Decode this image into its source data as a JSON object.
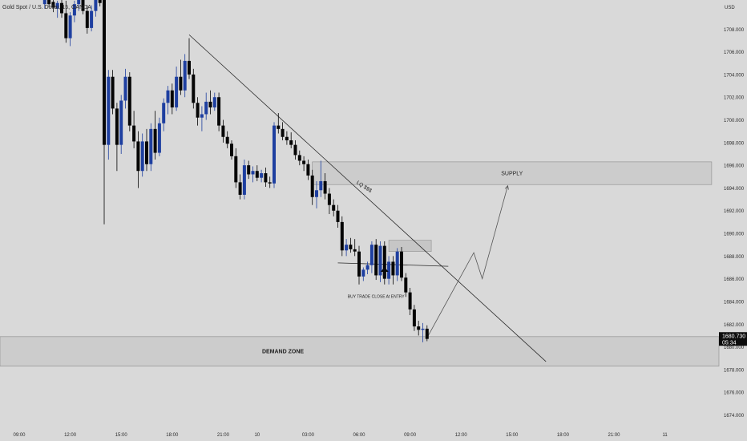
{
  "header": {
    "symbol_title": "Gold Spot / U.S. Dollar, 15, OANDA",
    "currency": "USD"
  },
  "price_tag": {
    "price": "1680.730",
    "countdown": "05:34",
    "value": 1680.73
  },
  "colors": {
    "background": "#d9d9d9",
    "bull": "#1e3fa0",
    "bear": "#050505",
    "zone": "#cccccc",
    "zone_border": "#8a8a8a",
    "line": "#2b2b2b"
  },
  "chart_data": {
    "type": "candlestick",
    "title": "Gold Spot / U.S. Dollar, 15, OANDA",
    "ylabel": "USD",
    "ylim": [
      1673.0,
      1711.0
    ],
    "grid": false,
    "y_ticks": [
      1674,
      1676,
      1678,
      1680,
      1682,
      1684,
      1686,
      1688,
      1690,
      1692,
      1694,
      1696,
      1698,
      1700,
      1702,
      1704,
      1706,
      1708
    ],
    "x_ticks": [
      {
        "label": "09:00",
        "i": 0
      },
      {
        "label": "12:00",
        "i": 12
      },
      {
        "label": "15:00",
        "i": 24
      },
      {
        "label": "18:00",
        "i": 36
      },
      {
        "label": "21:00",
        "i": 48
      },
      {
        "label": "10",
        "i": 56
      },
      {
        "label": "03:00",
        "i": 68
      },
      {
        "label": "06:00",
        "i": 80
      },
      {
        "label": "09:00",
        "i": 92
      },
      {
        "label": "12:00",
        "i": 104
      },
      {
        "label": "15:00",
        "i": 116
      },
      {
        "label": "18:00",
        "i": 128
      },
      {
        "label": "21:00",
        "i": 140
      },
      {
        "label": "11",
        "i": 152
      }
    ],
    "candles": [
      {
        "i": 6,
        "o": 1710.2,
        "h": 1711.0,
        "l": 1709.8,
        "c": 1710.6
      },
      {
        "i": 7,
        "o": 1710.6,
        "h": 1711.0,
        "l": 1709.9,
        "c": 1710.2
      },
      {
        "i": 8,
        "o": 1710.4,
        "h": 1711.0,
        "l": 1709.5,
        "c": 1709.9
      },
      {
        "i": 9,
        "o": 1709.8,
        "h": 1710.5,
        "l": 1709.0,
        "c": 1710.3
      },
      {
        "i": 10,
        "o": 1710.3,
        "h": 1711.0,
        "l": 1709.0,
        "c": 1709.4
      },
      {
        "i": 11,
        "o": 1709.4,
        "h": 1710.5,
        "l": 1706.8,
        "c": 1707.2
      },
      {
        "i": 12,
        "o": 1707.2,
        "h": 1709.5,
        "l": 1706.5,
        "c": 1709.2
      },
      {
        "i": 13,
        "o": 1709.2,
        "h": 1710.5,
        "l": 1708.6,
        "c": 1710.2
      },
      {
        "i": 14,
        "o": 1710.2,
        "h": 1711.0,
        "l": 1709.6,
        "c": 1710.7
      },
      {
        "i": 15,
        "o": 1710.7,
        "h": 1711.0,
        "l": 1709.3,
        "c": 1709.6
      },
      {
        "i": 16,
        "o": 1709.6,
        "h": 1710.1,
        "l": 1707.6,
        "c": 1708.1
      },
      {
        "i": 17,
        "o": 1708.1,
        "h": 1710.1,
        "l": 1707.8,
        "c": 1709.6
      },
      {
        "i": 18,
        "o": 1709.6,
        "h": 1711.0,
        "l": 1709.1,
        "c": 1710.7
      },
      {
        "i": 19,
        "o": 1710.8,
        "h": 1711.0,
        "l": 1710.0,
        "c": 1710.3
      },
      {
        "i": 20,
        "o": 1711.0,
        "h": 1711.0,
        "l": 1690.8,
        "c": 1697.8
      },
      {
        "i": 21,
        "o": 1697.8,
        "h": 1704.4,
        "l": 1696.5,
        "c": 1703.8
      },
      {
        "i": 22,
        "o": 1703.8,
        "h": 1704.4,
        "l": 1700.5,
        "c": 1701.0
      },
      {
        "i": 23,
        "o": 1701.0,
        "h": 1701.5,
        "l": 1695.5,
        "c": 1697.8
      },
      {
        "i": 24,
        "o": 1697.8,
        "h": 1702.2,
        "l": 1697.0,
        "c": 1701.7
      },
      {
        "i": 25,
        "o": 1701.7,
        "h": 1704.5,
        "l": 1701.0,
        "c": 1703.8
      },
      {
        "i": 26,
        "o": 1703.8,
        "h": 1704.2,
        "l": 1699.0,
        "c": 1699.5
      },
      {
        "i": 27,
        "o": 1699.5,
        "h": 1700.8,
        "l": 1697.5,
        "c": 1698.1
      },
      {
        "i": 28,
        "o": 1698.1,
        "h": 1699.0,
        "l": 1694.0,
        "c": 1695.5
      },
      {
        "i": 29,
        "o": 1695.5,
        "h": 1698.8,
        "l": 1695.0,
        "c": 1698.1
      },
      {
        "i": 30,
        "o": 1698.1,
        "h": 1699.2,
        "l": 1695.5,
        "c": 1696.1
      },
      {
        "i": 31,
        "o": 1696.1,
        "h": 1699.7,
        "l": 1695.5,
        "c": 1699.2
      },
      {
        "i": 32,
        "o": 1699.2,
        "h": 1700.8,
        "l": 1696.5,
        "c": 1697.1
      },
      {
        "i": 33,
        "o": 1697.1,
        "h": 1700.2,
        "l": 1696.8,
        "c": 1699.7
      },
      {
        "i": 34,
        "o": 1699.7,
        "h": 1701.9,
        "l": 1699.0,
        "c": 1701.5
      },
      {
        "i": 35,
        "o": 1701.5,
        "h": 1703.0,
        "l": 1700.5,
        "c": 1702.6
      },
      {
        "i": 36,
        "o": 1702.6,
        "h": 1703.2,
        "l": 1700.5,
        "c": 1701.1
      },
      {
        "i": 37,
        "o": 1701.1,
        "h": 1704.7,
        "l": 1700.8,
        "c": 1703.8
      },
      {
        "i": 38,
        "o": 1703.8,
        "h": 1705.3,
        "l": 1702.2,
        "c": 1702.6
      },
      {
        "i": 39,
        "o": 1702.6,
        "h": 1705.8,
        "l": 1702.0,
        "c": 1705.2
      },
      {
        "i": 40,
        "o": 1705.2,
        "h": 1707.2,
        "l": 1703.6,
        "c": 1704.0
      },
      {
        "i": 41,
        "o": 1704.0,
        "h": 1704.5,
        "l": 1701.0,
        "c": 1701.5
      },
      {
        "i": 42,
        "o": 1701.5,
        "h": 1702.0,
        "l": 1699.5,
        "c": 1700.2
      },
      {
        "i": 43,
        "o": 1700.2,
        "h": 1701.2,
        "l": 1699.0,
        "c": 1700.5
      },
      {
        "i": 44,
        "o": 1700.5,
        "h": 1702.4,
        "l": 1700.0,
        "c": 1701.6
      },
      {
        "i": 45,
        "o": 1701.6,
        "h": 1702.6,
        "l": 1700.5,
        "c": 1701.1
      },
      {
        "i": 46,
        "o": 1701.1,
        "h": 1702.4,
        "l": 1700.8,
        "c": 1702.0
      },
      {
        "i": 47,
        "o": 1702.0,
        "h": 1702.4,
        "l": 1699.0,
        "c": 1699.5
      },
      {
        "i": 48,
        "o": 1699.5,
        "h": 1700.0,
        "l": 1698.0,
        "c": 1698.5
      },
      {
        "i": 49,
        "o": 1698.5,
        "h": 1699.0,
        "l": 1697.5,
        "c": 1697.9
      },
      {
        "i": 50,
        "o": 1697.9,
        "h": 1698.2,
        "l": 1696.5,
        "c": 1696.8
      },
      {
        "i": 51,
        "o": 1696.8,
        "h": 1697.5,
        "l": 1694.0,
        "c": 1694.5
      },
      {
        "i": 52,
        "o": 1694.5,
        "h": 1695.2,
        "l": 1693.0,
        "c": 1693.4
      },
      {
        "i": 53,
        "o": 1693.4,
        "h": 1696.5,
        "l": 1693.0,
        "c": 1696.0
      },
      {
        "i": 54,
        "o": 1696.0,
        "h": 1696.4,
        "l": 1694.8,
        "c": 1695.2
      },
      {
        "i": 55,
        "o": 1695.2,
        "h": 1695.9,
        "l": 1694.5,
        "c": 1695.5
      },
      {
        "i": 56,
        "o": 1695.5,
        "h": 1696.0,
        "l": 1694.6,
        "c": 1694.9
      },
      {
        "i": 57,
        "o": 1694.9,
        "h": 1695.6,
        "l": 1694.5,
        "c": 1695.3
      },
      {
        "i": 58,
        "o": 1695.3,
        "h": 1695.8,
        "l": 1694.1,
        "c": 1694.5
      },
      {
        "i": 59,
        "o": 1694.5,
        "h": 1695.0,
        "l": 1694.0,
        "c": 1694.4
      },
      {
        "i": 60,
        "o": 1694.4,
        "h": 1699.8,
        "l": 1694.0,
        "c": 1699.5
      },
      {
        "i": 61,
        "o": 1699.5,
        "h": 1700.6,
        "l": 1698.8,
        "c": 1699.2
      },
      {
        "i": 62,
        "o": 1699.2,
        "h": 1699.8,
        "l": 1698.2,
        "c": 1698.5
      },
      {
        "i": 63,
        "o": 1698.5,
        "h": 1699.0,
        "l": 1697.8,
        "c": 1698.2
      },
      {
        "i": 64,
        "o": 1698.2,
        "h": 1698.9,
        "l": 1697.5,
        "c": 1697.8
      },
      {
        "i": 65,
        "o": 1697.8,
        "h": 1698.2,
        "l": 1696.5,
        "c": 1696.9
      },
      {
        "i": 66,
        "o": 1696.9,
        "h": 1697.3,
        "l": 1696.0,
        "c": 1696.4
      },
      {
        "i": 67,
        "o": 1696.4,
        "h": 1696.8,
        "l": 1695.5,
        "c": 1696.1
      },
      {
        "i": 68,
        "o": 1696.1,
        "h": 1696.5,
        "l": 1694.7,
        "c": 1695.1
      },
      {
        "i": 69,
        "o": 1695.1,
        "h": 1695.6,
        "l": 1692.5,
        "c": 1693.2
      },
      {
        "i": 70,
        "o": 1693.2,
        "h": 1694.6,
        "l": 1692.2,
        "c": 1693.8
      },
      {
        "i": 71,
        "o": 1693.8,
        "h": 1696.4,
        "l": 1693.2,
        "c": 1694.6
      },
      {
        "i": 72,
        "o": 1694.6,
        "h": 1695.3,
        "l": 1693.0,
        "c": 1693.5
      },
      {
        "i": 73,
        "o": 1693.5,
        "h": 1694.0,
        "l": 1691.7,
        "c": 1692.5
      },
      {
        "i": 74,
        "o": 1692.5,
        "h": 1693.0,
        "l": 1691.5,
        "c": 1692.0
      },
      {
        "i": 75,
        "o": 1692.0,
        "h": 1692.5,
        "l": 1690.5,
        "c": 1691.0
      },
      {
        "i": 76,
        "o": 1691.0,
        "h": 1691.5,
        "l": 1688.0,
        "c": 1688.5
      },
      {
        "i": 77,
        "o": 1688.5,
        "h": 1689.5,
        "l": 1688.0,
        "c": 1689.0
      },
      {
        "i": 78,
        "o": 1689.0,
        "h": 1689.6,
        "l": 1688.3,
        "c": 1688.6
      },
      {
        "i": 79,
        "o": 1688.6,
        "h": 1689.5,
        "l": 1688.0,
        "c": 1688.4
      },
      {
        "i": 80,
        "o": 1688.4,
        "h": 1688.9,
        "l": 1685.5,
        "c": 1686.2
      },
      {
        "i": 81,
        "o": 1686.2,
        "h": 1687.0,
        "l": 1685.8,
        "c": 1686.8
      },
      {
        "i": 82,
        "o": 1686.8,
        "h": 1687.5,
        "l": 1686.4,
        "c": 1687.2
      },
      {
        "i": 83,
        "o": 1687.2,
        "h": 1689.3,
        "l": 1686.5,
        "c": 1689.0
      },
      {
        "i": 84,
        "o": 1689.0,
        "h": 1689.5,
        "l": 1685.9,
        "c": 1686.3
      },
      {
        "i": 85,
        "o": 1686.3,
        "h": 1689.3,
        "l": 1685.7,
        "c": 1688.9
      },
      {
        "i": 86,
        "o": 1688.9,
        "h": 1689.3,
        "l": 1685.5,
        "c": 1686.0
      },
      {
        "i": 87,
        "o": 1686.0,
        "h": 1688.0,
        "l": 1685.5,
        "c": 1687.5
      },
      {
        "i": 88,
        "o": 1687.5,
        "h": 1688.0,
        "l": 1685.5,
        "c": 1686.3
      },
      {
        "i": 89,
        "o": 1686.3,
        "h": 1688.7,
        "l": 1685.8,
        "c": 1688.4
      },
      {
        "i": 90,
        "o": 1688.4,
        "h": 1688.8,
        "l": 1685.8,
        "c": 1686.1
      },
      {
        "i": 91,
        "o": 1686.1,
        "h": 1686.5,
        "l": 1684.4,
        "c": 1684.8
      },
      {
        "i": 92,
        "o": 1684.8,
        "h": 1685.2,
        "l": 1682.8,
        "c": 1683.3
      },
      {
        "i": 93,
        "o": 1683.3,
        "h": 1683.7,
        "l": 1681.4,
        "c": 1681.8
      },
      {
        "i": 94,
        "o": 1681.8,
        "h": 1682.3,
        "l": 1681.0,
        "c": 1681.5
      },
      {
        "i": 95,
        "o": 1681.5,
        "h": 1682.1,
        "l": 1680.4,
        "c": 1681.6
      },
      {
        "i": 96,
        "o": 1681.6,
        "h": 1681.9,
        "l": 1680.5,
        "c": 1680.7
      }
    ],
    "trendline": {
      "from": {
        "i": 40,
        "price": 1707.5
      },
      "to": {
        "i": 124,
        "price": 1678.7
      }
    },
    "entry_line": {
      "from": {
        "i": 75,
        "price": 1687.4
      },
      "to": {
        "i": 101,
        "price": 1687.1
      }
    },
    "supply_zone": {
      "label": "SUPPLY",
      "from_i": 69,
      "to_i": 163,
      "top": 1696.3,
      "bottom": 1694.3
    },
    "demand_zone": {
      "label": "DEMAND ZONE",
      "top": 1680.9,
      "bottom": 1678.3
    },
    "range_box": {
      "from_i": 87,
      "to_i": 97,
      "top": 1689.4,
      "bottom": 1688.4
    },
    "projection": [
      {
        "i": 96,
        "price": 1680.8
      },
      {
        "i": 107,
        "price": 1688.3
      },
      {
        "i": 109,
        "price": 1686.0
      },
      {
        "i": 115,
        "price": 1694.2
      }
    ],
    "annotations": [
      {
        "text": "LQ $$$",
        "i": 81,
        "price": 1694.0,
        "rotate": 33
      },
      {
        "text": "BUY TRADE CLOSE At ENTRY",
        "i": 84,
        "price": 1684.3
      }
    ],
    "entry_arrow": {
      "i": 86,
      "price": 1686.4
    }
  }
}
